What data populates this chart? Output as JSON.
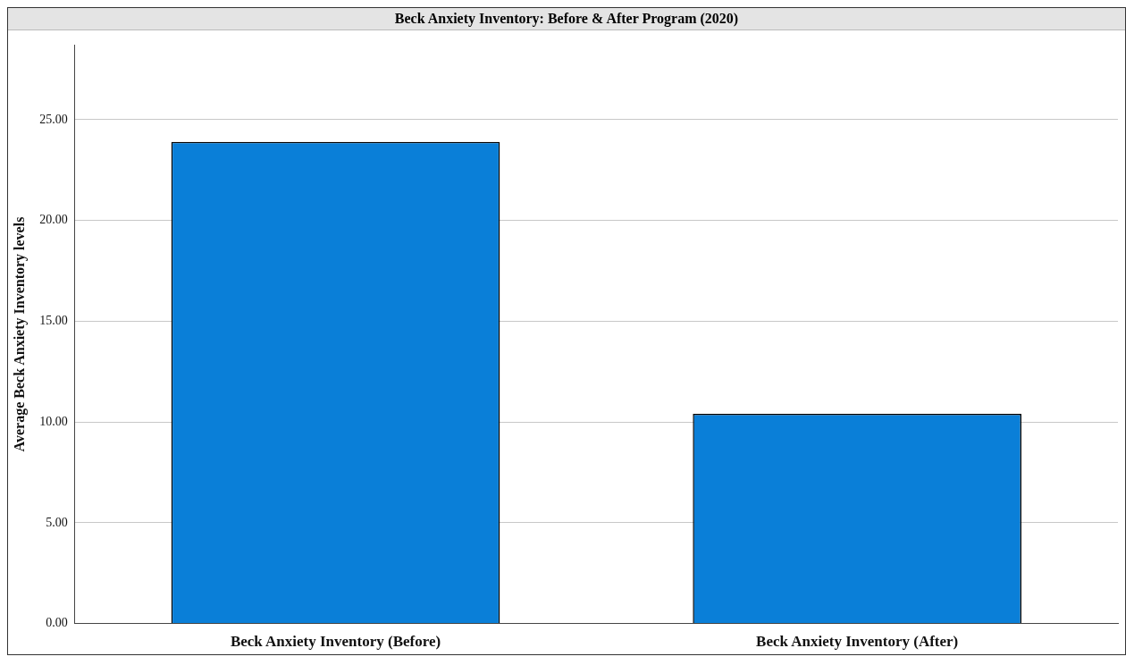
{
  "chart_data": {
    "type": "bar",
    "title": "Beck Anxiety Inventory: Before & After Program (2020)",
    "ylabel": "Average Beck Anxiety Inventory levels",
    "categories": [
      "Beck Anxiety Inventory (Before)",
      "Beck Anxiety Inventory (After)"
    ],
    "values": [
      23.9,
      10.4
    ],
    "color": "#0a7fd8",
    "ylim": [
      0,
      28.7
    ],
    "yticks": [
      {
        "value": 0,
        "label": "0.00"
      },
      {
        "value": 5,
        "label": "5.00"
      },
      {
        "value": 10,
        "label": "10.00"
      },
      {
        "value": 15,
        "label": "15.00"
      },
      {
        "value": 20,
        "label": "20.00"
      },
      {
        "value": 25,
        "label": "25.00"
      }
    ],
    "grid": "y"
  }
}
